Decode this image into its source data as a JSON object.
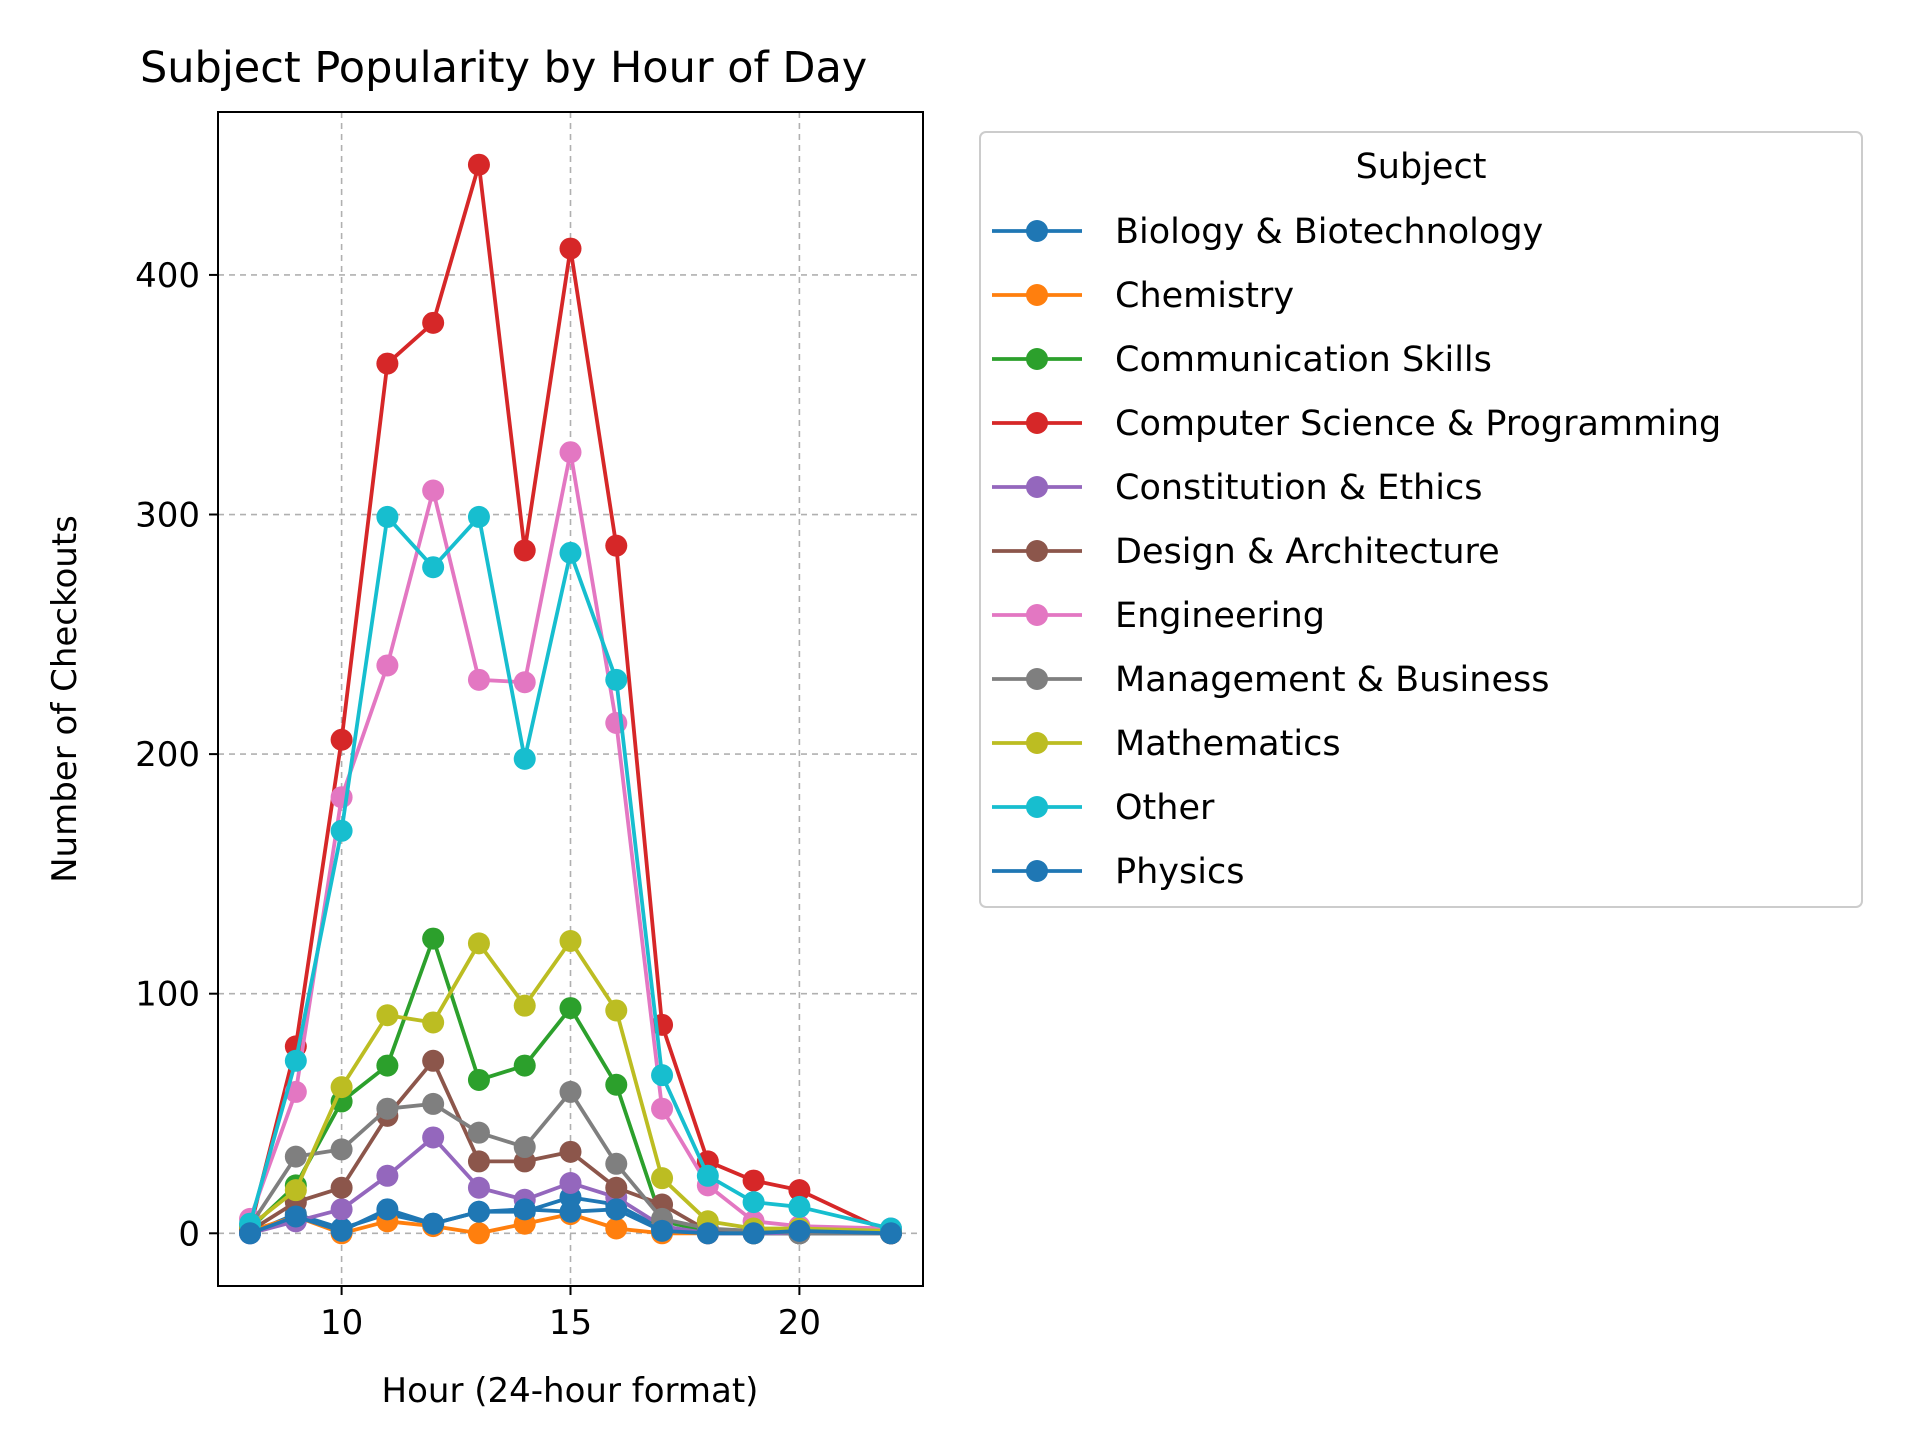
{
  "chart_data": {
    "type": "line",
    "title": "Subject Popularity by Hour of Day",
    "xlabel": "Hour (24-hour format)",
    "ylabel": "Number of Checkouts",
    "xlim": [
      7.3,
      22.7
    ],
    "ylim": [
      -22,
      468
    ],
    "xticks": [
      10,
      15,
      20
    ],
    "yticks": [
      0,
      100,
      200,
      300,
      400
    ],
    "grid": true,
    "legend": {
      "title": "Subject",
      "placement": "outside-right"
    },
    "x": [
      8,
      9,
      10,
      11,
      12,
      13,
      14,
      15,
      16,
      17,
      18,
      19,
      20,
      22
    ],
    "series": [
      {
        "name": "Biology & Biotechnology",
        "color": "#1f77b4",
        "values": [
          0,
          8,
          2,
          8,
          4,
          9,
          9,
          15,
          12,
          2,
          0,
          0,
          0,
          0
        ]
      },
      {
        "name": "Chemistry",
        "color": "#ff7f0e",
        "values": [
          1,
          7,
          0,
          5,
          3,
          0,
          4,
          8,
          2,
          0,
          0,
          0,
          0,
          0
        ]
      },
      {
        "name": "Communication Skills",
        "color": "#2ca02c",
        "values": [
          2,
          20,
          55,
          70,
          123,
          64,
          70,
          94,
          62,
          5,
          1,
          0,
          0,
          0
        ]
      },
      {
        "name": "Computer Science & Programming",
        "color": "#d62728",
        "values": [
          2,
          78,
          206,
          363,
          380,
          446,
          285,
          411,
          287,
          87,
          30,
          22,
          18,
          0
        ]
      },
      {
        "name": "Constitution & Ethics",
        "color": "#9467bd",
        "values": [
          0,
          5,
          10,
          24,
          40,
          19,
          14,
          21,
          15,
          3,
          0,
          0,
          0,
          0
        ]
      },
      {
        "name": "Design & Architecture",
        "color": "#8c564b",
        "values": [
          1,
          13,
          19,
          49,
          72,
          30,
          30,
          34,
          19,
          12,
          1,
          1,
          1,
          0
        ]
      },
      {
        "name": "Engineering",
        "color": "#e377c2",
        "values": [
          6,
          59,
          182,
          237,
          310,
          231,
          230,
          326,
          213,
          52,
          20,
          5,
          3,
          2
        ]
      },
      {
        "name": "Management & Business",
        "color": "#7f7f7f",
        "values": [
          3,
          32,
          35,
          52,
          54,
          42,
          36,
          59,
          29,
          6,
          2,
          1,
          0,
          0
        ]
      },
      {
        "name": "Mathematics",
        "color": "#bcbd22",
        "values": [
          3,
          18,
          61,
          91,
          88,
          121,
          95,
          122,
          93,
          23,
          5,
          2,
          2,
          1
        ]
      },
      {
        "name": "Other",
        "color": "#17becf",
        "values": [
          4,
          72,
          168,
          299,
          278,
          299,
          198,
          284,
          231,
          66,
          24,
          13,
          11,
          2
        ]
      },
      {
        "name": "Physics",
        "color": "#1f77b4",
        "values": [
          0,
          7,
          1,
          10,
          4,
          9,
          10,
          9,
          10,
          1,
          0,
          0,
          1,
          0
        ]
      }
    ]
  }
}
